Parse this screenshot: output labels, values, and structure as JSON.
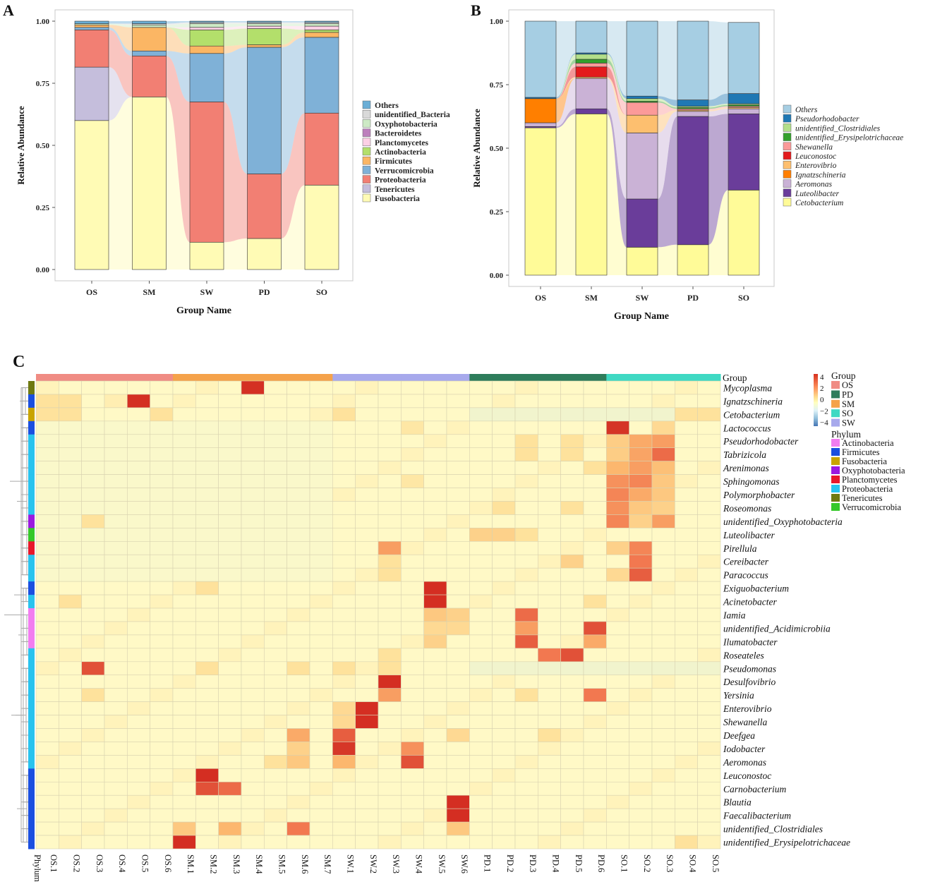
{
  "panels": {
    "a": "A",
    "b": "B",
    "c": "C"
  },
  "chart_data": [
    {
      "type": "bar",
      "stacked": true,
      "title": "",
      "xlabel": "Group Name",
      "ylabel": "Relative Abundance",
      "ylim": [
        0,
        1
      ],
      "yticks": [
        "0.00",
        "0.25",
        "0.50",
        "0.75",
        "1.00"
      ],
      "categories": [
        "OS",
        "SM",
        "SW",
        "PD",
        "SO"
      ],
      "legend_italic": false,
      "legend_order": [
        "Others",
        "unidentified_Bacteria",
        "Oxyphotobacteria",
        "Bacteroidetes",
        "Planctomycetes",
        "Actinobacteria",
        "Firmicutes",
        "Verrucomicrobia",
        "Proteobacteria",
        "Tenericutes",
        "Fusobacteria"
      ],
      "series": [
        {
          "name": "Fusobacteria",
          "color": "#fffbb5",
          "values": [
            0.6,
            0.695,
            0.11,
            0.125,
            0.34
          ]
        },
        {
          "name": "Tenericutes",
          "color": "#c5bedc",
          "values": [
            0.215,
            0.0,
            0.0,
            0.0,
            0.0
          ]
        },
        {
          "name": "Proteobacteria",
          "color": "#f27f73",
          "values": [
            0.15,
            0.165,
            0.565,
            0.26,
            0.29
          ]
        },
        {
          "name": "Verrucomicrobia",
          "color": "#7fb1d7",
          "values": [
            0.01,
            0.02,
            0.195,
            0.51,
            0.305
          ]
        },
        {
          "name": "Firmicutes",
          "color": "#fbb664",
          "values": [
            0.01,
            0.095,
            0.03,
            0.01,
            0.02
          ]
        },
        {
          "name": "Actinobacteria",
          "color": "#b3df6b",
          "values": [
            0.0,
            0.0,
            0.065,
            0.065,
            0.01
          ]
        },
        {
          "name": "Planctomycetes",
          "color": "#fcd0e5",
          "values": [
            0.0,
            0.0,
            0.01,
            0.01,
            0.015
          ]
        },
        {
          "name": "Bacteroidetes",
          "color": "#bd80bd",
          "values": [
            0.0,
            0.0,
            0.0,
            0.0,
            0.0
          ]
        },
        {
          "name": "Oxyphotobacteria",
          "color": "#cdeac5",
          "values": [
            0.005,
            0.01,
            0.015,
            0.01,
            0.01
          ]
        },
        {
          "name": "unidentified_Bacteria",
          "color": "#d9d9d9",
          "values": [
            0.0,
            0.005,
            0.005,
            0.005,
            0.005
          ]
        },
        {
          "name": "Others",
          "color": "#6aaed6",
          "values": [
            0.01,
            0.01,
            0.005,
            0.005,
            0.005
          ]
        }
      ]
    },
    {
      "type": "bar",
      "stacked": true,
      "title": "",
      "xlabel": "Group Name",
      "ylabel": "Relative Abundance",
      "ylim": [
        0,
        1
      ],
      "yticks": [
        "0.00",
        "0.25",
        "0.50",
        "0.75",
        "1.00"
      ],
      "categories": [
        "OS",
        "SM",
        "SW",
        "PD",
        "SO"
      ],
      "legend_italic": true,
      "legend_order": [
        "Others",
        "Pseudorhodobacter",
        "unidentified_Clostridiales",
        "unidentified_Erysipelotrichaceae",
        "Shewanella",
        "Leuconostoc",
        "Enterovibrio",
        "Ignatzschineria",
        "Aeromonas",
        "Luteolibacter",
        "Cetobacterium"
      ],
      "series": [
        {
          "name": "Cetobacterium",
          "color": "#fffb98",
          "values": [
            0.58,
            0.635,
            0.11,
            0.12,
            0.335
          ]
        },
        {
          "name": "Luteolibacter",
          "color": "#6a3d9a",
          "values": [
            0.005,
            0.02,
            0.19,
            0.505,
            0.3
          ]
        },
        {
          "name": "Aeromonas",
          "color": "#cab2d6",
          "values": [
            0.015,
            0.12,
            0.26,
            0.02,
            0.02
          ]
        },
        {
          "name": "Ignatzschineria",
          "color": "#ff7f00",
          "values": [
            0.095,
            0.0,
            0.0,
            0.0,
            0.0
          ]
        },
        {
          "name": "Enterovibrio",
          "color": "#fdbf6f",
          "values": [
            0.0,
            0.005,
            0.07,
            0.005,
            0.005
          ]
        },
        {
          "name": "Leuconostoc",
          "color": "#e31a1c",
          "values": [
            0.0,
            0.04,
            0.0,
            0.0,
            0.0
          ]
        },
        {
          "name": "Shewanella",
          "color": "#fb9a99",
          "values": [
            0.0,
            0.015,
            0.05,
            0.005,
            0.005
          ]
        },
        {
          "name": "unidentified_Erysipelotrichaceae",
          "color": "#33a02c",
          "values": [
            0.0,
            0.015,
            0.005,
            0.005,
            0.005
          ]
        },
        {
          "name": "unidentified_Clostridiales",
          "color": "#b2df8a",
          "values": [
            0.0,
            0.02,
            0.01,
            0.005,
            0.005
          ]
        },
        {
          "name": "Pseudorhodobacter",
          "color": "#1f78b4",
          "values": [
            0.005,
            0.005,
            0.01,
            0.025,
            0.04
          ]
        },
        {
          "name": "Others",
          "color": "#a6cee3",
          "values": [
            0.3,
            0.125,
            0.295,
            0.31,
            0.28
          ]
        }
      ]
    },
    {
      "type": "heatmap",
      "title": "",
      "columns": [
        "OS.1",
        "OS.2",
        "OS.3",
        "OS.4",
        "OS.5",
        "OS.6",
        "SM.1",
        "SM.2",
        "SM.3",
        "SM.4",
        "SM.5",
        "SM.6",
        "SM.7",
        "SW.1",
        "SW.2",
        "SW.3",
        "SW.4",
        "SW.5",
        "SW.6",
        "PD.1",
        "PD.2",
        "PD.3",
        "PD.4",
        "PD.5",
        "PD.6",
        "SO.1",
        "SO.2",
        "SO.3",
        "SO.4",
        "SO.5"
      ],
      "column_groups": [
        "OS",
        "OS",
        "OS",
        "OS",
        "OS",
        "OS",
        "SM",
        "SM",
        "SM",
        "SM",
        "SM",
        "SM",
        "SM",
        "SW",
        "SW",
        "SW",
        "SW",
        "SW",
        "SW",
        "PD",
        "PD",
        "PD",
        "PD",
        "PD",
        "PD",
        "SO",
        "SO",
        "SO",
        "SO",
        "SO"
      ],
      "group_bar_order": [
        "OS",
        "SM",
        "SW",
        "PD",
        "SO"
      ],
      "rows": [
        "Mycoplasma",
        "Ignatzschineria",
        "Cetobacterium",
        "Lactococcus",
        "Pseudorhodobacter",
        "Tabrizicola",
        "Arenimonas",
        "Sphingomonas",
        "Polymorphobacter",
        "Roseomonas",
        "unidentified_Oxyphotobacteria",
        "Luteolibacter",
        "Pirellula",
        "Cereibacter",
        "Paracoccus",
        "Exiguobacterium",
        "Acinetobacter",
        "Iamia",
        "unidentified_Acidimicrobiia",
        "Ilumatobacter",
        "Roseateles",
        "Pseudomonas",
        "Desulfovibrio",
        "Yersinia",
        "Enterovibrio",
        "Shewanella",
        "Deefgea",
        "Iodobacter",
        "Aeromonas",
        "Leuconostoc",
        "Carnobacterium",
        "Blautia",
        "Faecalibacterium",
        "unidentified_Clostridiales",
        "unidentified_Erysipelotrichaceae"
      ],
      "row_phylum": [
        "Tenericutes",
        "Firmicutes",
        "Fusobacteria",
        "Firmicutes",
        "Proteobacteria",
        "Proteobacteria",
        "Proteobacteria",
        "Proteobacteria",
        "Proteobacteria",
        "Proteobacteria",
        "Oxyphotobacteria",
        "Verrucomicrobia",
        "Planctomycetes",
        "Proteobacteria",
        "Proteobacteria",
        "Firmicutes",
        "Proteobacteria",
        "Actinobacteria",
        "Actinobacteria",
        "Actinobacteria",
        "Proteobacteria",
        "Proteobacteria",
        "Proteobacteria",
        "Proteobacteria",
        "Proteobacteria",
        "Proteobacteria",
        "Proteobacteria",
        "Proteobacteria",
        "Proteobacteria",
        "Firmicutes",
        "Firmicutes",
        "Firmicutes",
        "Firmicutes",
        "Firmicutes",
        "Firmicutes"
      ],
      "hot_cells": [
        {
          "r": 0,
          "c": 9,
          "v": 4.5
        },
        {
          "r": 1,
          "c": 0,
          "v": 1.0
        },
        {
          "r": 1,
          "c": 1,
          "v": 1.0
        },
        {
          "r": 1,
          "c": 4,
          "v": 4.5
        },
        {
          "r": 1,
          "c": 3,
          "v": 0.5
        },
        {
          "r": 2,
          "c": 0,
          "v": 1.0
        },
        {
          "r": 2,
          "c": 1,
          "v": 1.0
        },
        {
          "r": 2,
          "c": 5,
          "v": 1.0
        },
        {
          "r": 2,
          "c": 13,
          "v": 1.0
        },
        {
          "r": 2,
          "c": 28,
          "v": 1.0
        },
        {
          "r": 2,
          "c": 29,
          "v": 1.0
        },
        {
          "r": 3,
          "c": 25,
          "v": 4.2
        },
        {
          "r": 3,
          "c": 27,
          "v": 1.2
        },
        {
          "r": 3,
          "c": 16,
          "v": 0.8
        },
        {
          "r": 4,
          "c": 25,
          "v": 1.5
        },
        {
          "r": 4,
          "c": 26,
          "v": 2.2
        },
        {
          "r": 4,
          "c": 27,
          "v": 2.4
        },
        {
          "r": 4,
          "c": 21,
          "v": 1.0
        },
        {
          "r": 4,
          "c": 23,
          "v": 1.0
        },
        {
          "r": 5,
          "c": 25,
          "v": 1.5
        },
        {
          "r": 5,
          "c": 26,
          "v": 2.3
        },
        {
          "r": 5,
          "c": 27,
          "v": 3.2
        },
        {
          "r": 5,
          "c": 21,
          "v": 1.0
        },
        {
          "r": 5,
          "c": 23,
          "v": 1.0
        },
        {
          "r": 6,
          "c": 25,
          "v": 2.0
        },
        {
          "r": 6,
          "c": 26,
          "v": 2.4
        },
        {
          "r": 6,
          "c": 27,
          "v": 1.8
        },
        {
          "r": 6,
          "c": 24,
          "v": 1.0
        },
        {
          "r": 7,
          "c": 25,
          "v": 2.6
        },
        {
          "r": 7,
          "c": 26,
          "v": 2.8
        },
        {
          "r": 7,
          "c": 27,
          "v": 1.6
        },
        {
          "r": 7,
          "c": 16,
          "v": 0.8
        },
        {
          "r": 8,
          "c": 25,
          "v": 2.8
        },
        {
          "r": 8,
          "c": 26,
          "v": 2.2
        },
        {
          "r": 8,
          "c": 27,
          "v": 1.6
        },
        {
          "r": 9,
          "c": 25,
          "v": 2.6
        },
        {
          "r": 9,
          "c": 26,
          "v": 1.6
        },
        {
          "r": 9,
          "c": 27,
          "v": 1.4
        },
        {
          "r": 9,
          "c": 20,
          "v": 1.0
        },
        {
          "r": 9,
          "c": 23,
          "v": 1.0
        },
        {
          "r": 10,
          "c": 25,
          "v": 2.8
        },
        {
          "r": 10,
          "c": 26,
          "v": 1.4
        },
        {
          "r": 10,
          "c": 27,
          "v": 2.4
        },
        {
          "r": 10,
          "c": 2,
          "v": 1.0
        },
        {
          "r": 11,
          "c": 19,
          "v": 1.4
        },
        {
          "r": 11,
          "c": 20,
          "v": 1.4
        },
        {
          "r": 11,
          "c": 21,
          "v": 1.0
        },
        {
          "r": 12,
          "c": 15,
          "v": 2.4
        },
        {
          "r": 12,
          "c": 26,
          "v": 2.8
        },
        {
          "r": 12,
          "c": 25,
          "v": 1.4
        },
        {
          "r": 13,
          "c": 26,
          "v": 3.0
        },
        {
          "r": 13,
          "c": 23,
          "v": 1.4
        },
        {
          "r": 13,
          "c": 15,
          "v": 1.0
        },
        {
          "r": 14,
          "c": 26,
          "v": 3.4
        },
        {
          "r": 14,
          "c": 15,
          "v": 1.0
        },
        {
          "r": 14,
          "c": 25,
          "v": 1.2
        },
        {
          "r": 15,
          "c": 17,
          "v": 4.6
        },
        {
          "r": 15,
          "c": 7,
          "v": 1.0
        },
        {
          "r": 16,
          "c": 17,
          "v": 4.6
        },
        {
          "r": 16,
          "c": 1,
          "v": 1.0
        },
        {
          "r": 16,
          "c": 24,
          "v": 1.0
        },
        {
          "r": 17,
          "c": 21,
          "v": 3.2
        },
        {
          "r": 17,
          "c": 17,
          "v": 1.6
        },
        {
          "r": 17,
          "c": 18,
          "v": 1.4
        },
        {
          "r": 18,
          "c": 21,
          "v": 2.4
        },
        {
          "r": 18,
          "c": 24,
          "v": 3.6
        },
        {
          "r": 18,
          "c": 17,
          "v": 1.2
        },
        {
          "r": 18,
          "c": 18,
          "v": 1.2
        },
        {
          "r": 19,
          "c": 21,
          "v": 3.4
        },
        {
          "r": 19,
          "c": 24,
          "v": 2.2
        },
        {
          "r": 19,
          "c": 17,
          "v": 1.4
        },
        {
          "r": 20,
          "c": 22,
          "v": 3.0
        },
        {
          "r": 20,
          "c": 23,
          "v": 3.6
        },
        {
          "r": 20,
          "c": 15,
          "v": 1.0
        },
        {
          "r": 21,
          "c": 2,
          "v": 3.6
        },
        {
          "r": 21,
          "c": 7,
          "v": 1.0
        },
        {
          "r": 21,
          "c": 11,
          "v": 1.0
        },
        {
          "r": 21,
          "c": 13,
          "v": 1.0
        },
        {
          "r": 21,
          "c": 15,
          "v": 1.0
        },
        {
          "r": 22,
          "c": 15,
          "v": 4.6
        },
        {
          "r": 23,
          "c": 15,
          "v": 2.4
        },
        {
          "r": 23,
          "c": 24,
          "v": 3.0
        },
        {
          "r": 23,
          "c": 21,
          "v": 1.0
        },
        {
          "r": 23,
          "c": 2,
          "v": 1.0
        },
        {
          "r": 24,
          "c": 14,
          "v": 4.6
        },
        {
          "r": 24,
          "c": 13,
          "v": 1.2
        },
        {
          "r": 25,
          "c": 14,
          "v": 4.6
        },
        {
          "r": 25,
          "c": 13,
          "v": 1.2
        },
        {
          "r": 26,
          "c": 13,
          "v": 3.4
        },
        {
          "r": 26,
          "c": 11,
          "v": 2.2
        },
        {
          "r": 26,
          "c": 18,
          "v": 1.2
        },
        {
          "r": 26,
          "c": 22,
          "v": 1.0
        },
        {
          "r": 27,
          "c": 13,
          "v": 4.0
        },
        {
          "r": 27,
          "c": 16,
          "v": 2.6
        },
        {
          "r": 27,
          "c": 11,
          "v": 1.4
        },
        {
          "r": 28,
          "c": 16,
          "v": 3.6
        },
        {
          "r": 28,
          "c": 13,
          "v": 2.0
        },
        {
          "r": 28,
          "c": 11,
          "v": 1.6
        },
        {
          "r": 28,
          "c": 10,
          "v": 1.0
        },
        {
          "r": 29,
          "c": 7,
          "v": 4.6
        },
        {
          "r": 30,
          "c": 7,
          "v": 3.6
        },
        {
          "r": 30,
          "c": 8,
          "v": 3.2
        },
        {
          "r": 31,
          "c": 18,
          "v": 4.6
        },
        {
          "r": 32,
          "c": 18,
          "v": 4.6
        },
        {
          "r": 33,
          "c": 6,
          "v": 1.6
        },
        {
          "r": 33,
          "c": 8,
          "v": 2.0
        },
        {
          "r": 33,
          "c": 11,
          "v": 3.0
        },
        {
          "r": 33,
          "c": 18,
          "v": 1.6
        },
        {
          "r": 34,
          "c": 6,
          "v": 4.6
        },
        {
          "r": 34,
          "c": 28,
          "v": 1.0
        }
      ],
      "scale": {
        "ticks": [
          "4",
          "2",
          "0",
          "−2",
          "−4"
        ]
      },
      "legend_group_title": "Group",
      "legend_groups": [
        {
          "name": "OS",
          "color": "#f08c84"
        },
        {
          "name": "PD",
          "color": "#2e7d5b"
        },
        {
          "name": "SM",
          "color": "#f5a24a"
        },
        {
          "name": "SO",
          "color": "#3fd9c3"
        },
        {
          "name": "SW",
          "color": "#a7a9ec"
        }
      ],
      "legend_phylum_title": "Phylum",
      "legend_phyla": [
        {
          "name": "Actinobacteria",
          "color": "#f27df0"
        },
        {
          "name": "Firmicutes",
          "color": "#1b4fe0"
        },
        {
          "name": "Fusobacteria",
          "color": "#c9a400"
        },
        {
          "name": "Oxyphotobacteria",
          "color": "#9b19e0"
        },
        {
          "name": "Planctomycetes",
          "color": "#e8172b"
        },
        {
          "name": "Proteobacteria",
          "color": "#29c3ee"
        },
        {
          "name": "Tenericutes",
          "color": "#6f7a12"
        },
        {
          "name": "Verrucomicrobia",
          "color": "#35c82a"
        }
      ],
      "group_label": "Group",
      "phylum_label": "Phylum"
    }
  ]
}
